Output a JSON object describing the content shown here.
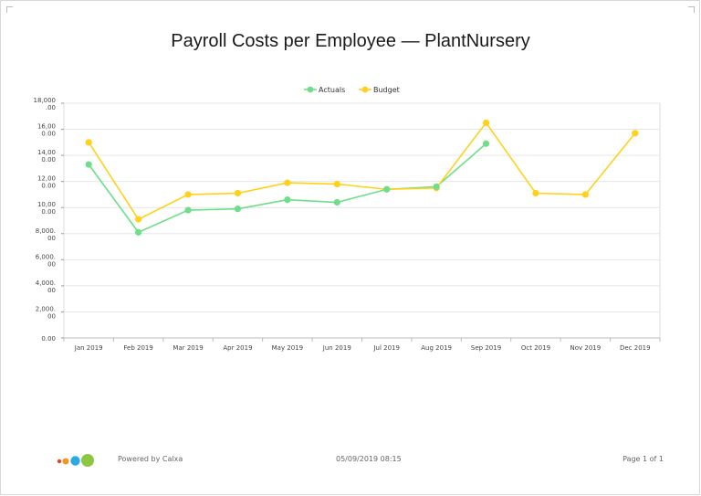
{
  "chart_data": {
    "type": "line",
    "title": "Payroll Costs per Employee — PlantNursery",
    "categories": [
      "Jan 2019",
      "Feb 2019",
      "Mar 2019",
      "Apr 2019",
      "May 2019",
      "Jun 2019",
      "Jul 2019",
      "Aug 2019",
      "Sep 2019",
      "Oct 2019",
      "Nov 2019",
      "Dec 2019"
    ],
    "series": [
      {
        "name": "Actuals",
        "color": "#6ede8a",
        "values": [
          13300,
          8100,
          9800,
          9900,
          10600,
          10400,
          11400,
          11600,
          14900,
          null,
          null,
          null
        ]
      },
      {
        "name": "Budget",
        "color": "#ffd11a",
        "values": [
          15000,
          9100,
          11000,
          11100,
          11900,
          11800,
          11400,
          11500,
          16500,
          11100,
          11000,
          15700
        ]
      }
    ],
    "ylim": [
      0,
      18000
    ],
    "ytick_labels": [
      {
        "value": 0,
        "lines": [
          "0.00"
        ]
      },
      {
        "value": 2000,
        "lines": [
          "2,000.",
          "00"
        ]
      },
      {
        "value": 4000,
        "lines": [
          "4,000.",
          "00"
        ]
      },
      {
        "value": 6000,
        "lines": [
          "6,000.",
          "00"
        ]
      },
      {
        "value": 8000,
        "lines": [
          "8,000.",
          "00"
        ]
      },
      {
        "value": 10000,
        "lines": [
          "10,00",
          "0.00"
        ]
      },
      {
        "value": 12000,
        "lines": [
          "12,00",
          "0.00"
        ]
      },
      {
        "value": 14000,
        "lines": [
          "14,00",
          "0.00"
        ]
      },
      {
        "value": 16000,
        "lines": [
          "16,00",
          "0.00"
        ]
      },
      {
        "value": 18000,
        "lines": [
          "18,000",
          ".00"
        ]
      }
    ],
    "legend_position": "top-center",
    "grid": true
  },
  "footer": {
    "powered_by": "Powered by Calxa",
    "timestamp": "05/09/2019 08:15",
    "page": "Page 1 of 1",
    "logo_colors": [
      "#e8412c",
      "#f7941d",
      "#29abe2",
      "#8dc63f"
    ]
  }
}
